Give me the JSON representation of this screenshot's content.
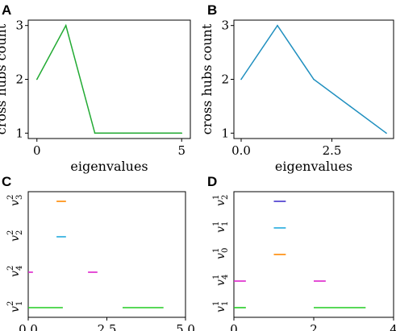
{
  "chart_data": [
    {
      "panel": "A",
      "type": "line",
      "xlabel": "eigenvalues",
      "ylabel": "cross hubs count",
      "xlim": [
        -0.3,
        5.3
      ],
      "ylim": [
        0.9,
        3.1
      ],
      "xticks": [
        0,
        5
      ],
      "yticks": [
        1,
        2,
        3
      ],
      "series": [
        {
          "color": "#22aa33",
          "x": [
            0,
            1,
            2,
            3,
            4,
            5
          ],
          "y": [
            2,
            3,
            1,
            1,
            1,
            1
          ]
        }
      ]
    },
    {
      "panel": "B",
      "type": "line",
      "xlabel": "eigenvalues",
      "ylabel": "cross hubs count",
      "xlim": [
        -0.2,
        4.2
      ],
      "ylim": [
        0.9,
        3.1
      ],
      "xticks": [
        0.0,
        2.5
      ],
      "xticklabels": [
        "0.0",
        "2.5"
      ],
      "yticks": [
        1,
        2,
        3
      ],
      "series": [
        {
          "color": "#1f8fbf",
          "x": [
            0,
            1,
            2,
            3,
            4
          ],
          "y": [
            2,
            3,
            2,
            1.5,
            1
          ]
        }
      ]
    },
    {
      "panel": "C",
      "type": "scatter",
      "xlim": [
        0.0,
        5.0
      ],
      "xticks": [
        0.0,
        2.5,
        5.0
      ],
      "xticklabels": [
        "0.0",
        "2.5",
        "5.0"
      ],
      "rows": [
        {
          "label": "v",
          "sup": "2",
          "sub": "1",
          "segments": [
            {
              "x": [
                0,
                1.1
              ],
              "color": "#22cc22"
            },
            {
              "x": [
                3.0,
                4.3
              ],
              "color": "#22cc22"
            }
          ]
        },
        {
          "label": "v",
          "sup": "2",
          "sub": "4",
          "segments": [
            {
              "x": [
                0,
                0.15
              ],
              "color": "#dd22cc"
            },
            {
              "x": [
                1.9,
                2.2
              ],
              "color": "#dd22cc"
            }
          ]
        },
        {
          "label": "v",
          "sup": "2",
          "sub": "2",
          "segments": [
            {
              "x": [
                0.9,
                1.2
              ],
              "color": "#22aadd"
            }
          ]
        },
        {
          "label": "v",
          "sup": "2",
          "sub": "3",
          "segments": [
            {
              "x": [
                0.9,
                1.2
              ],
              "color": "#ff8800"
            }
          ]
        }
      ]
    },
    {
      "panel": "D",
      "type": "scatter",
      "xlim": [
        0,
        4
      ],
      "xticks": [
        0,
        2,
        4
      ],
      "xticklabels": [
        "0",
        "2",
        "4"
      ],
      "rows": [
        {
          "label": "v",
          "sup": "1",
          "sub": "1",
          "segments": [
            {
              "x": [
                0,
                0.3
              ],
              "color": "#22cc22"
            },
            {
              "x": [
                2.0,
                3.3
              ],
              "color": "#22cc22"
            }
          ]
        },
        {
          "label": "v",
          "sup": "1",
          "sub": "4",
          "segments": [
            {
              "x": [
                0,
                0.3
              ],
              "color": "#dd22cc"
            },
            {
              "x": [
                2.0,
                2.3
              ],
              "color": "#dd22cc"
            }
          ]
        },
        {
          "label": "v",
          "sup": "1",
          "sub": "0",
          "segments": [
            {
              "x": [
                1.0,
                1.3
              ],
              "color": "#ff8800"
            }
          ]
        },
        {
          "label": "v",
          "sup": "1",
          "sub": "1",
          "segments": [
            {
              "x": [
                1.0,
                1.3
              ],
              "color": "#22aadd"
            }
          ]
        },
        {
          "label": "v",
          "sup": "1",
          "sub": "2",
          "segments": [
            {
              "x": [
                1.0,
                1.3
              ],
              "color": "#4433cc"
            }
          ]
        }
      ]
    }
  ]
}
